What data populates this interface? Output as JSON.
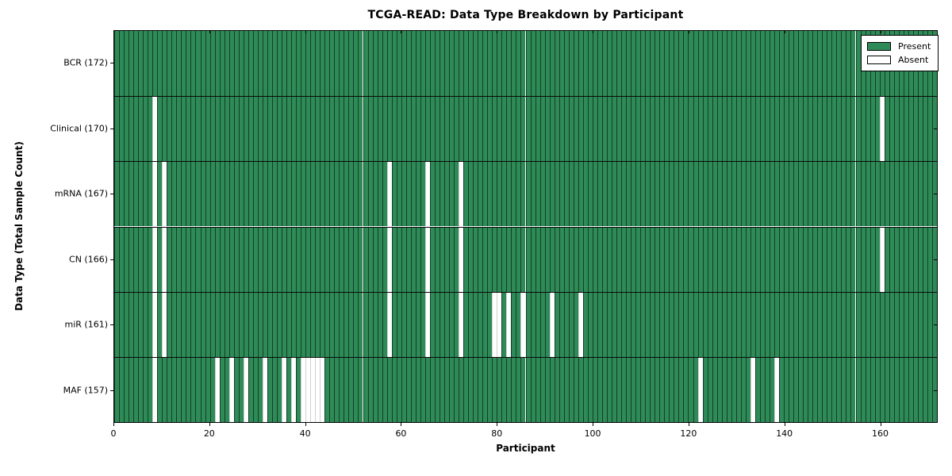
{
  "title": "TCGA-READ: Data Type Breakdown by Participant",
  "legend": {
    "present_label": "Present",
    "absent_label": "Absent"
  },
  "colors": {
    "present": "#2E8B57",
    "absent": "#FFFFFF",
    "cell_edge": "#10331f",
    "axis": "#000000"
  },
  "chart_data": {
    "type": "heatmap",
    "title": "TCGA-READ: Data Type Breakdown by Participant",
    "xlabel": "Participant",
    "ylabel": "Data Type (Total Sample Count)",
    "xlim": [
      0,
      172
    ],
    "n_participants": 172,
    "x_ticks": [
      0,
      20,
      40,
      60,
      80,
      100,
      120,
      140,
      160
    ],
    "grid": false,
    "legend_position": "upper right",
    "legend_entries": [
      "Present",
      "Absent"
    ],
    "rows": [
      {
        "data_type": "BCR",
        "label": "BCR (172)",
        "total_sample_count": 172,
        "absent_participants": []
      },
      {
        "data_type": "Clinical",
        "label": "Clinical (170)",
        "total_sample_count": 170,
        "absent_participants": [
          8,
          160
        ]
      },
      {
        "data_type": "mRNA",
        "label": "mRNA (167)",
        "total_sample_count": 167,
        "absent_participants": [
          8,
          10,
          57,
          65,
          72
        ]
      },
      {
        "data_type": "CN",
        "label": "CN (166)",
        "total_sample_count": 166,
        "absent_participants": [
          8,
          10,
          57,
          65,
          72,
          160
        ]
      },
      {
        "data_type": "miR",
        "label": "miR (161)",
        "total_sample_count": 161,
        "absent_participants": [
          8,
          10,
          57,
          65,
          72,
          79,
          80,
          82,
          85,
          91,
          97
        ]
      },
      {
        "data_type": "MAF",
        "label": "MAF (157)",
        "total_sample_count": 157,
        "absent_participants": [
          8,
          21,
          24,
          27,
          31,
          35,
          37,
          39,
          40,
          41,
          42,
          43,
          122,
          133,
          138
        ]
      }
    ]
  }
}
